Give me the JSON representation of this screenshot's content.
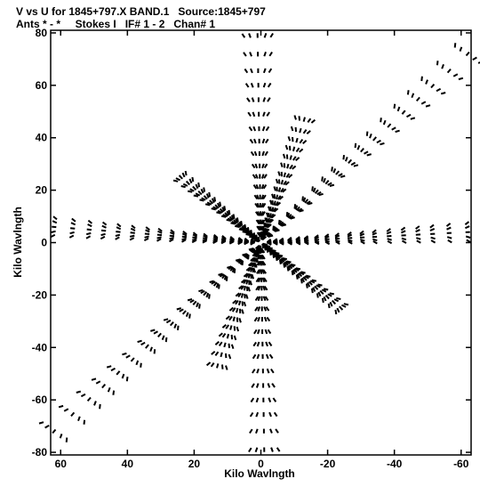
{
  "chart_data": {
    "type": "scatter",
    "title": "V vs U for 1845+797.X BAND.1   Source:1845+797",
    "subtitle": "Ants * - *     Stokes I   IF# 1 - 2   Chan# 1",
    "xlabel": "Kilo Wavlngth",
    "ylabel": "Kilo Wavlngth",
    "xlim": [
      63,
      -63
    ],
    "ylim": [
      -81,
      81
    ],
    "x_ticks": [
      60,
      40,
      20,
      0,
      -20,
      -40,
      -60
    ],
    "y_ticks": [
      80,
      60,
      40,
      20,
      0,
      -20,
      -40,
      -60,
      -80
    ],
    "x_tick_labels": [
      "60",
      "40",
      "20",
      "0",
      "-20",
      "-40",
      "-60"
    ],
    "y_tick_labels": [
      "80",
      "60",
      "40",
      "20",
      "0",
      "-20",
      "-40",
      "-60",
      "-80"
    ],
    "marker": "short dash",
    "color": "#000000",
    "grid": false,
    "arm_endpoints": [
      {
        "u": -62,
        "v": 72
      },
      {
        "u": -62,
        "v": 4
      },
      {
        "u": -13,
        "v": 47
      },
      {
        "u": 1,
        "v": 79
      },
      {
        "u": 24,
        "v": 25
      },
      {
        "u": 62,
        "v": 6
      },
      {
        "u": 62,
        "v": -72
      },
      {
        "u": 13,
        "v": -47
      },
      {
        "u": -1,
        "v": -79
      },
      {
        "u": -24,
        "v": -25
      }
    ]
  }
}
